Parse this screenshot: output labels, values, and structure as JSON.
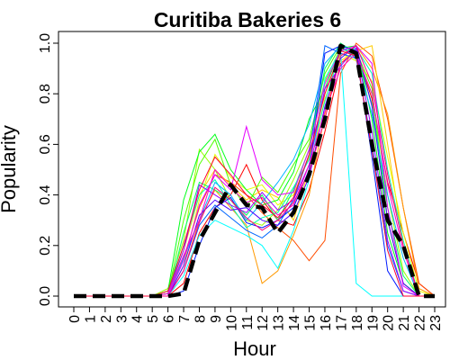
{
  "chart_data": {
    "type": "line",
    "title": "Curitiba Bakeries 6",
    "xlabel": "Hour",
    "ylabel": "Popularity",
    "x": [
      0,
      1,
      2,
      3,
      4,
      5,
      6,
      7,
      8,
      9,
      10,
      11,
      12,
      13,
      14,
      15,
      16,
      17,
      18,
      19,
      20,
      21,
      22,
      23
    ],
    "x_tick_labels": [
      "0",
      "1",
      "2",
      "3",
      "4",
      "5",
      "6",
      "7",
      "8",
      "9",
      "10",
      "11",
      "12",
      "13",
      "14",
      "15",
      "16",
      "17",
      "18",
      "19",
      "20",
      "21",
      "22",
      "23"
    ],
    "y_ticks": [
      0.0,
      0.2,
      0.4,
      0.6,
      0.8,
      1.0
    ],
    "y_tick_labels": [
      "0.0",
      "0.2",
      "0.4",
      "0.6",
      "0.8",
      "1.0"
    ],
    "xlim": [
      0,
      23
    ],
    "ylim": [
      0,
      1
    ],
    "grid": false,
    "legend": "none",
    "summary_series": {
      "style": "black-dashed-thick",
      "color": "#000000",
      "values": [
        0,
        0,
        0,
        0,
        0,
        0,
        0,
        0.01,
        0.22,
        0.33,
        0.44,
        0.36,
        0.35,
        0.25,
        0.33,
        0.48,
        0.7,
        0.99,
        0.96,
        0.6,
        0.3,
        0.2,
        0,
        0
      ]
    },
    "series": [
      {
        "color": "#ff0000",
        "values": [
          0,
          0,
          0,
          0,
          0,
          0,
          0,
          0.05,
          0.25,
          0.35,
          0.4,
          0.52,
          0.38,
          0.3,
          0.28,
          0.42,
          0.65,
          0.92,
          0.97,
          0.78,
          0.45,
          0.25,
          0.05,
          0
        ]
      },
      {
        "color": "#ff4d00",
        "values": [
          0,
          0,
          0,
          0,
          0,
          0,
          0.01,
          0.15,
          0.35,
          0.48,
          0.45,
          0.4,
          0.33,
          0.27,
          0.22,
          0.14,
          0.22,
          0.88,
          1.0,
          0.95,
          0.7,
          0.35,
          0.05,
          0
        ]
      },
      {
        "color": "#ff9900",
        "values": [
          0,
          0,
          0,
          0,
          0,
          0,
          0,
          0.1,
          0.3,
          0.42,
          0.35,
          0.28,
          0.05,
          0.1,
          0.24,
          0.4,
          0.72,
          0.95,
          0.99,
          0.9,
          0.72,
          0.35,
          0.03,
          0
        ]
      },
      {
        "color": "#ffcc00",
        "values": [
          0,
          0,
          0,
          0,
          0,
          0,
          0.02,
          0.18,
          0.4,
          0.5,
          0.44,
          0.38,
          0.42,
          0.39,
          0.3,
          0.5,
          0.78,
          0.93,
          0.97,
          0.99,
          0.6,
          0.2,
          0,
          0
        ]
      },
      {
        "color": "#e6ff00",
        "values": [
          0,
          0,
          0,
          0,
          0,
          0,
          0,
          0.12,
          0.38,
          0.56,
          0.47,
          0.42,
          0.44,
          0.36,
          0.4,
          0.55,
          0.8,
          0.96,
          0.93,
          0.85,
          0.55,
          0.25,
          0.02,
          0
        ]
      },
      {
        "color": "#99ff00",
        "values": [
          0,
          0,
          0,
          0,
          0,
          0,
          0.03,
          0.22,
          0.58,
          0.5,
          0.38,
          0.3,
          0.28,
          0.34,
          0.46,
          0.6,
          0.85,
          0.98,
          0.95,
          0.8,
          0.4,
          0.1,
          0,
          0
        ]
      },
      {
        "color": "#4dff00",
        "values": [
          0,
          0,
          0,
          0,
          0,
          0,
          0.01,
          0.3,
          0.52,
          0.62,
          0.44,
          0.35,
          0.47,
          0.41,
          0.52,
          0.62,
          0.88,
          0.99,
          0.97,
          0.82,
          0.3,
          0.05,
          0,
          0
        ]
      },
      {
        "color": "#00ff1a",
        "values": [
          0,
          0,
          0,
          0,
          0,
          0,
          0.02,
          0.38,
          0.57,
          0.64,
          0.5,
          0.42,
          0.36,
          0.38,
          0.49,
          0.7,
          0.82,
          0.98,
          0.99,
          0.7,
          0.25,
          0.05,
          0,
          0
        ]
      },
      {
        "color": "#00ff66",
        "values": [
          0,
          0,
          0,
          0,
          0,
          0,
          0,
          0.25,
          0.45,
          0.42,
          0.38,
          0.32,
          0.4,
          0.3,
          0.42,
          0.58,
          0.9,
          1.0,
          0.96,
          0.76,
          0.35,
          0.08,
          0,
          0
        ]
      },
      {
        "color": "#00ffb3",
        "values": [
          0,
          0,
          0,
          0,
          0,
          0,
          0.01,
          0.2,
          0.4,
          0.46,
          0.36,
          0.27,
          0.31,
          0.33,
          0.43,
          0.54,
          0.77,
          0.97,
          0.98,
          0.88,
          0.5,
          0.22,
          0,
          0
        ]
      },
      {
        "color": "#00ffff",
        "values": [
          0,
          0,
          0,
          0,
          0,
          0,
          0,
          0.08,
          0.24,
          0.3,
          0.27,
          0.24,
          0.2,
          0.11,
          0.26,
          0.46,
          0.86,
          0.97,
          0.05,
          0,
          0,
          0,
          0,
          0
        ]
      },
      {
        "color": "#00b3ff",
        "values": [
          0,
          0,
          0,
          0,
          0,
          0,
          0,
          0.15,
          0.3,
          0.45,
          0.4,
          0.3,
          0.37,
          0.45,
          0.54,
          0.68,
          0.92,
          0.99,
          0.94,
          0.72,
          0.4,
          0.15,
          0,
          0
        ]
      },
      {
        "color": "#0066ff",
        "values": [
          0,
          0,
          0,
          0,
          0,
          0,
          0,
          0.1,
          0.28,
          0.36,
          0.31,
          0.26,
          0.23,
          0.28,
          0.38,
          0.56,
          0.99,
          0.96,
          0.94,
          0.6,
          0.2,
          0.02,
          0,
          0
        ]
      },
      {
        "color": "#001aff",
        "values": [
          0,
          0,
          0,
          0,
          0,
          0,
          0,
          0.02,
          0.2,
          0.35,
          0.39,
          0.29,
          0.27,
          0.3,
          0.35,
          0.5,
          0.96,
          0.99,
          0.97,
          0.55,
          0.1,
          0,
          0,
          0
        ]
      },
      {
        "color": "#4d00ff",
        "values": [
          0,
          0,
          0,
          0,
          0,
          0,
          0,
          0.12,
          0.32,
          0.38,
          0.34,
          0.35,
          0.3,
          0.28,
          0.33,
          0.47,
          0.75,
          0.94,
          0.99,
          0.75,
          0.3,
          0.05,
          0,
          0
        ]
      },
      {
        "color": "#9900ff",
        "values": [
          0,
          0,
          0,
          0,
          0,
          0,
          0.01,
          0.18,
          0.44,
          0.4,
          0.36,
          0.33,
          0.41,
          0.34,
          0.38,
          0.52,
          0.82,
          0.91,
          0.98,
          0.65,
          0.22,
          0.02,
          0,
          0
        ]
      },
      {
        "color": "#e600ff",
        "values": [
          0,
          0,
          0,
          0,
          0,
          0,
          0,
          0.14,
          0.36,
          0.48,
          0.42,
          0.67,
          0.46,
          0.4,
          0.41,
          0.58,
          0.84,
          0.97,
          0.99,
          0.92,
          0.35,
          0.04,
          0,
          0
        ]
      },
      {
        "color": "#ff00cc",
        "values": [
          0,
          0,
          0,
          0,
          0,
          0,
          0.01,
          0.16,
          0.3,
          0.5,
          0.43,
          0.37,
          0.39,
          0.32,
          0.36,
          0.52,
          0.73,
          0.9,
          0.96,
          0.8,
          0.44,
          0.18,
          0,
          0
        ]
      },
      {
        "color": "#ff0080",
        "values": [
          0,
          0,
          0,
          0,
          0,
          0,
          0,
          0.1,
          0.29,
          0.43,
          0.38,
          0.31,
          0.26,
          0.3,
          0.37,
          0.49,
          0.7,
          0.95,
          0.99,
          0.84,
          0.48,
          0.2,
          0,
          0
        ]
      },
      {
        "color": "#ff0033",
        "values": [
          0,
          0,
          0,
          0,
          0,
          0,
          0.02,
          0.2,
          0.42,
          0.55,
          0.48,
          0.4,
          0.36,
          0.31,
          0.39,
          0.56,
          0.8,
          0.97,
          0.95,
          0.58,
          0.18,
          0,
          0,
          0
        ]
      }
    ]
  }
}
